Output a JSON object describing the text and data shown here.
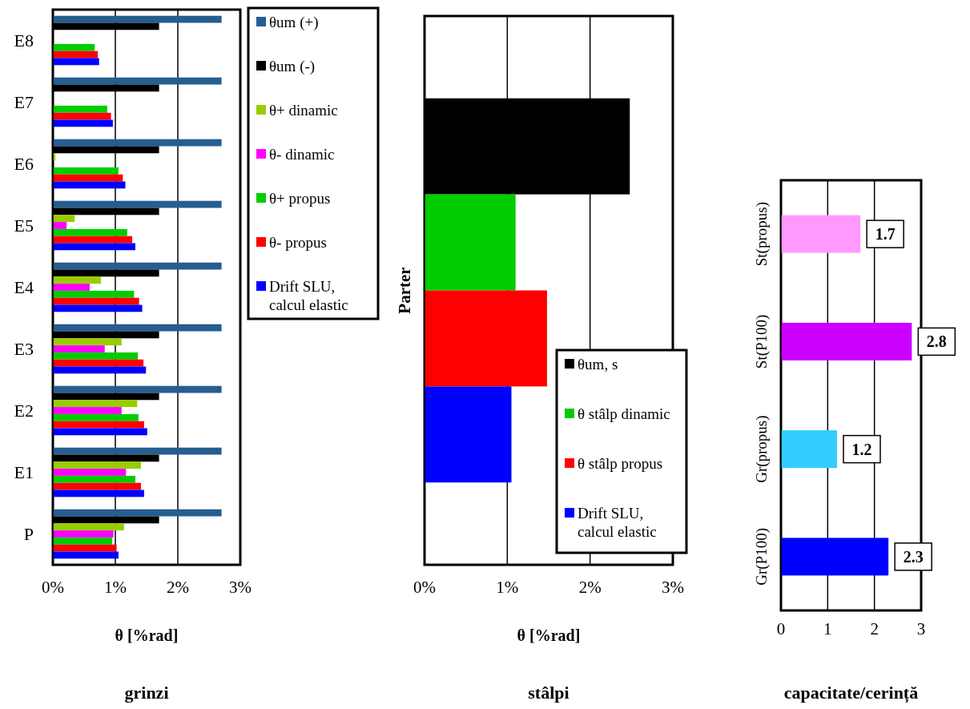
{
  "chart_data": [
    {
      "type": "bar",
      "orientation": "horizontal",
      "title": "grinzi",
      "xlabel": "θ [%rad]",
      "categories": [
        "E8",
        "E7",
        "E6",
        "E5",
        "E4",
        "E3",
        "E2",
        "E1",
        "P"
      ],
      "xlim": [
        0,
        3
      ],
      "xticks": [
        {
          "value": 0,
          "label": "0%"
        },
        {
          "value": 1,
          "label": "1%"
        },
        {
          "value": 2,
          "label": "2%"
        },
        {
          "value": 3,
          "label": "3%"
        }
      ],
      "grid": "x",
      "legend": "right",
      "series": [
        {
          "name": "θum (+)",
          "color": "#255e91",
          "values": [
            2.7,
            2.7,
            2.7,
            2.7,
            2.7,
            2.7,
            2.7,
            2.7,
            2.7
          ]
        },
        {
          "name": "θum (-)",
          "color": "#000000",
          "values": [
            1.7,
            1.7,
            1.7,
            1.7,
            1.7,
            1.7,
            1.7,
            1.7,
            1.7
          ]
        },
        {
          "name": "θ+ dinamic",
          "color": "#99cc00",
          "values": [
            null,
            null,
            0.04,
            0.35,
            0.77,
            1.1,
            1.35,
            1.41,
            1.14
          ]
        },
        {
          "name": "θ- dinamic",
          "color": "#ff00ff",
          "values": [
            null,
            null,
            null,
            0.22,
            0.59,
            0.83,
            1.1,
            1.17,
            0.97
          ]
        },
        {
          "name": "θ+ propus",
          "color": "#00cc00",
          "values": [
            0.67,
            0.87,
            1.05,
            1.19,
            1.3,
            1.36,
            1.37,
            1.32,
            0.95
          ]
        },
        {
          "name": "θ- propus",
          "color": "#ff0000",
          "values": [
            0.72,
            0.93,
            1.12,
            1.27,
            1.38,
            1.45,
            1.46,
            1.41,
            1.02
          ]
        },
        {
          "name": "Drift SLU, calcul elastic",
          "color": "#0000ff",
          "values": [
            0.74,
            0.96,
            1.16,
            1.32,
            1.43,
            1.49,
            1.51,
            1.46,
            1.05
          ]
        }
      ]
    },
    {
      "type": "bar",
      "orientation": "horizontal",
      "title": "stâlpi",
      "xlabel": "θ [%rad]",
      "categories": [
        "Parter"
      ],
      "xlim": [
        0,
        3
      ],
      "xticks": [
        {
          "value": 0,
          "label": "0%"
        },
        {
          "value": 1,
          "label": "1%"
        },
        {
          "value": 2,
          "label": "2%"
        },
        {
          "value": 3,
          "label": "3%"
        }
      ],
      "grid": "x",
      "legend": "bottom right",
      "series": [
        {
          "name": "θum, s",
          "color": "#000000",
          "values": [
            2.48
          ]
        },
        {
          "name": "θ stâlp dinamic",
          "color": "#00cc00",
          "values": [
            1.1
          ]
        },
        {
          "name": "θ stâlp propus",
          "color": "#ff0000",
          "values": [
            1.48
          ]
        },
        {
          "name": "Drift SLU, calcul elastic",
          "color": "#0000ff",
          "values": [
            1.05
          ]
        }
      ]
    },
    {
      "type": "bar",
      "orientation": "horizontal",
      "title": "capacitate/cerință",
      "categories": [
        "St(propus)",
        "St(P100)",
        "Gr(propus)",
        "Gr(P100)"
      ],
      "values": [
        1.7,
        2.8,
        1.2,
        2.3
      ],
      "colors": [
        "#ff99ff",
        "#cc00ff",
        "#33ccff",
        "#0000ff"
      ],
      "xlim": [
        0,
        3
      ],
      "xticks": [
        0,
        1,
        2,
        3
      ],
      "grid": "x",
      "data_labels": true
    }
  ]
}
